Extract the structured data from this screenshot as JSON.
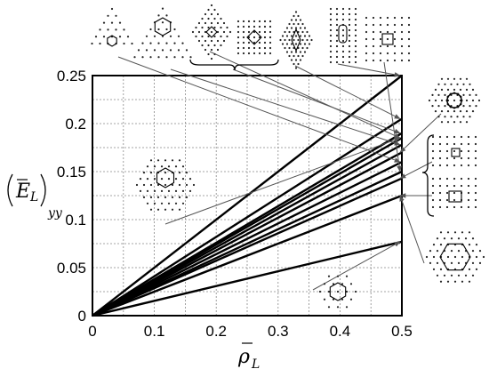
{
  "chart_data": {
    "type": "line",
    "title": "",
    "xlabel": "ρ̄_L",
    "ylabel": "(Ē_L)_yy",
    "xlim": [
      0,
      0.5
    ],
    "ylim": [
      0,
      0.25
    ],
    "grid": true,
    "x_ticks": [
      "0",
      "0.1",
      "0.2",
      "0.3",
      "0.4",
      "0.5"
    ],
    "y_ticks": [
      "0",
      "0.05",
      "0.1",
      "0.15",
      "0.2",
      "0.25"
    ],
    "series": [
      {
        "x": [
          0,
          0.5
        ],
        "y": [
          0,
          0.25
        ]
      },
      {
        "x": [
          0,
          0.5
        ],
        "y": [
          0,
          0.205
        ]
      },
      {
        "x": [
          0,
          0.5
        ],
        "y": [
          0,
          0.19
        ]
      },
      {
        "x": [
          0,
          0.5
        ],
        "y": [
          0,
          0.185
        ]
      },
      {
        "x": [
          0,
          0.5
        ],
        "y": [
          0,
          0.178
        ]
      },
      {
        "x": [
          0,
          0.5
        ],
        "y": [
          0,
          0.17
        ]
      },
      {
        "x": [
          0,
          0.5
        ],
        "y": [
          0,
          0.16
        ]
      },
      {
        "x": [
          0,
          0.5
        ],
        "y": [
          0,
          0.15
        ]
      },
      {
        "x": [
          0,
          0.5
        ],
        "y": [
          0,
          0.143
        ]
      },
      {
        "x": [
          0,
          0.5
        ],
        "y": [
          0,
          0.125
        ]
      },
      {
        "x": [
          0,
          0.5
        ],
        "y": [
          0,
          0.077
        ]
      }
    ],
    "insets": [
      {
        "icon": "triangle-lattice-small-hexagon",
        "slope_index": 6
      },
      {
        "icon": "triangle-lattice-large-hexagon",
        "slope_index": 4
      },
      {
        "icon": "diamond-lattice-small-diamond",
        "slope_index": 3
      },
      {
        "icon": "square-lattice-diamond",
        "slope_index": 2
      },
      {
        "icon": "diamond-lattice-rhombus",
        "slope_index": 1
      },
      {
        "icon": "rect-lattice-rounded-rect",
        "slope_index": 0
      },
      {
        "icon": "square-lattice-square",
        "slope_index": 7
      },
      {
        "icon": "hex-lattice-star",
        "slope_index": 5
      },
      {
        "icon": "square-lattice-centered-dot",
        "slope_index": 8
      },
      {
        "icon": "square-lattice-plain",
        "slope_index": 9
      },
      {
        "icon": "hex-lattice-large-hexagon",
        "slope_index": 9
      },
      {
        "icon": "diamond-lattice-hexagon",
        "slope_index": 3
      },
      {
        "icon": "hex-lattice-small-hexagon",
        "slope_index": 10
      }
    ]
  }
}
